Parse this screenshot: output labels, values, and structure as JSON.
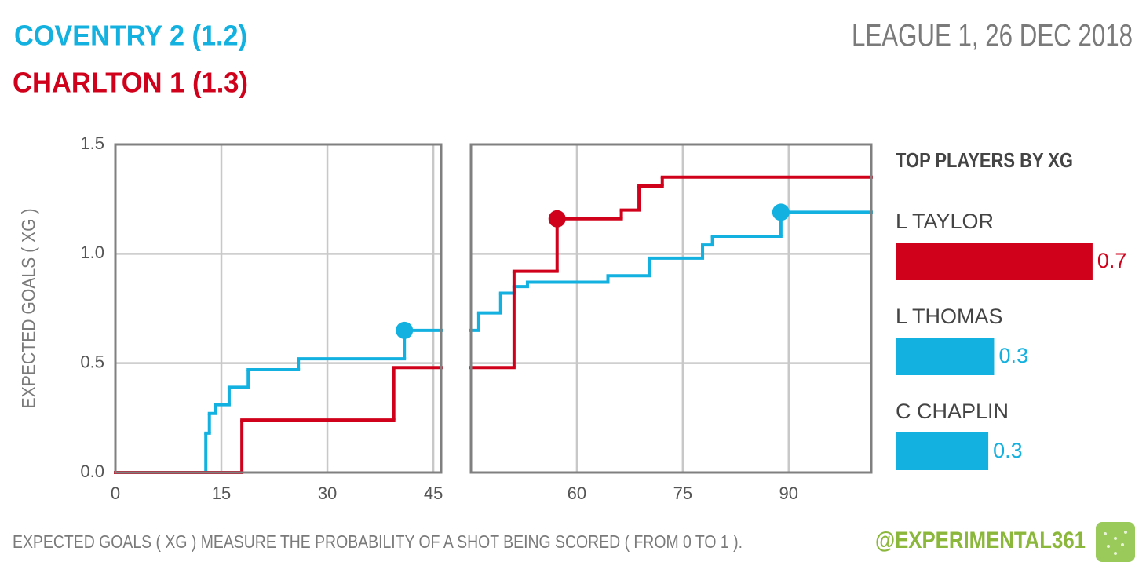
{
  "header": {
    "home": "COVENTRY 2 (1.2)",
    "away": "CHARLTON 1 (1.3)",
    "subtitle": "LEAGUE 1, 26 DEC 2018"
  },
  "footer": {
    "note": "EXPECTED GOALS ( XG ) MEASURE THE PROBABILITY OF A SHOT BEING SCORED ( FROM 0 TO 1 ).",
    "handle": "@EXPERIMENTAL361"
  },
  "chart_data": [
    {
      "type": "step",
      "y_label": "EXPECTED GOALS ( XG )",
      "xlim": [
        0,
        46.1
      ],
      "xticks": [
        0,
        15,
        30,
        45
      ],
      "ylim": [
        0,
        1.5
      ],
      "yticks": [
        {
          "value": 0,
          "label": "0.0"
        },
        0.5,
        {
          "value": 1,
          "label": "1.0"
        },
        {
          "value": 1.5,
          "label": "1.5"
        }
      ],
      "grid": true,
      "series": [
        {
          "color": "#13b1e0",
          "x": [
            0,
            12.8,
            13.3,
            14.2,
            16.1,
            18.8,
            25.9,
            40.9
          ],
          "values": [
            0,
            0.18,
            0.27,
            0.31,
            0.39,
            0.47,
            0.52,
            0.65
          ],
          "goals": {
            "x": [
              40.9
            ],
            "values": [
              0.65
            ]
          }
        },
        {
          "color": "#d0021b",
          "x": [
            0,
            17.9,
            39.4
          ],
          "values": [
            0,
            0.24,
            0.48
          ],
          "goals": {
            "x": [],
            "values": []
          }
        }
      ]
    },
    {
      "type": "step",
      "xlim": [
        45,
        101.7
      ],
      "xticks": [
        60,
        75,
        90
      ],
      "grid": true,
      "series": [
        {
          "color": "#13b1e0",
          "x": [
            45,
            46.1,
            49.2,
            51.1,
            53,
            64.4,
            70.3,
            77.8,
            79.2,
            88.9
          ],
          "values": [
            0.65,
            0.73,
            0.82,
            0.85,
            0.87,
            0.9,
            0.98,
            1.04,
            1.08,
            1.19
          ],
          "goals": {
            "x": [
              88.9
            ],
            "values": [
              1.19
            ]
          }
        },
        {
          "color": "#d0021b",
          "x": [
            45,
            51.1,
            57.2,
            66.3,
            68.8,
            72.1
          ],
          "values": [
            0.48,
            0.92,
            1.16,
            1.2,
            1.31,
            1.35
          ],
          "goals": {
            "x": [
              57.2
            ],
            "values": [
              1.16
            ]
          }
        }
      ]
    },
    {
      "type": "hbar",
      "title": "TOP PLAYERS BY XG",
      "categories": [
        "L TAYLOR",
        "L THOMAS",
        "C CHAPLIN"
      ],
      "values": [
        0.68,
        0.34,
        0.32
      ],
      "value_labels": [
        "0.7",
        "0.3",
        "0.3"
      ],
      "colors": [
        "#d0021b",
        "#13b1e0",
        "#13b1e0"
      ]
    }
  ]
}
